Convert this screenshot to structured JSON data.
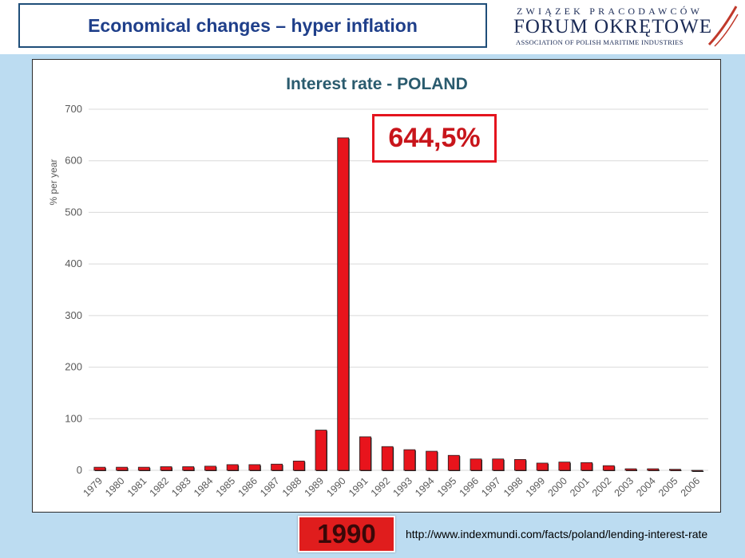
{
  "slide": {
    "title": "Economical changes – hyper inflation",
    "callout": "644,5%",
    "year_badge": "1990",
    "source_url": "http://www.indexmundi.com/facts/poland/lending-interest-rate"
  },
  "logo": {
    "line1": "ZWIĄZEK PRACODAWCÓW",
    "line2": "FORUM OKRĘTOWE",
    "line3": "ASSOCIATION OF POLISH MARITIME INDUSTRIES"
  },
  "colors": {
    "bar": "#e8141c",
    "bar_edge": "#222222",
    "title": "#2a5b6e",
    "grid": "#d9d9d9",
    "axis_text": "#595959",
    "accent": "#e4141e"
  },
  "chart_data": {
    "type": "bar",
    "title": "Interest rate - POLAND",
    "xlabel": "",
    "ylabel": "% per year",
    "ylim": [
      0,
      700
    ],
    "yticks": [
      0,
      100,
      200,
      300,
      400,
      500,
      600,
      700
    ],
    "grid": true,
    "categories": [
      "1979",
      "1980",
      "1981",
      "1982",
      "1983",
      "1984",
      "1985",
      "1986",
      "1987",
      "1988",
      "1989",
      "1990",
      "1991",
      "1992",
      "1993",
      "1994",
      "1995",
      "1996",
      "1997",
      "1998",
      "1999",
      "2000",
      "2001",
      "2002",
      "2003",
      "2004",
      "2005",
      "2006"
    ],
    "values": [
      6,
      6,
      6,
      7,
      7,
      8,
      11,
      11,
      12,
      18,
      78,
      644.5,
      65,
      46,
      40,
      37,
      29,
      22,
      22,
      21,
      14,
      16,
      15,
      9,
      3,
      3,
      2,
      -1
    ]
  }
}
